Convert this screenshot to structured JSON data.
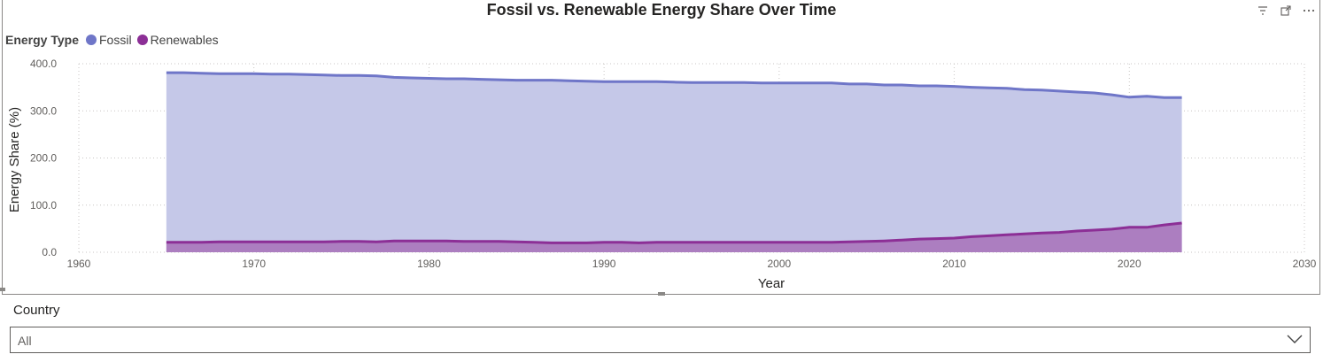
{
  "header": {
    "title": "Fossil vs. Renewable Energy Share Over Time",
    "icons": [
      "filter-icon",
      "focus-mode-icon",
      "more-options-icon"
    ]
  },
  "legend": {
    "title": "Energy Type",
    "items": [
      {
        "label": "Fossil",
        "color": "#6f76c8"
      },
      {
        "label": "Renewables",
        "color": "#8c2f96"
      }
    ]
  },
  "chart_data": {
    "type": "area",
    "xlabel": "Year",
    "ylabel": "Energy Share (%)",
    "xlim": [
      1960,
      2030
    ],
    "ylim": [
      0,
      400
    ],
    "x_ticks": [
      "1960",
      "1970",
      "1980",
      "1990",
      "2000",
      "2010",
      "2020",
      "2030"
    ],
    "y_ticks": [
      "0.0",
      "100.0",
      "200.0",
      "300.0",
      "400.0"
    ],
    "grid": true,
    "legend_position": "top-left",
    "x": [
      1965,
      1966,
      1967,
      1968,
      1969,
      1970,
      1971,
      1972,
      1973,
      1974,
      1975,
      1976,
      1977,
      1978,
      1979,
      1980,
      1981,
      1982,
      1983,
      1984,
      1985,
      1986,
      1987,
      1988,
      1989,
      1990,
      1991,
      1992,
      1993,
      1994,
      1995,
      1996,
      1997,
      1998,
      1999,
      2000,
      2001,
      2002,
      2003,
      2004,
      2005,
      2006,
      2007,
      2008,
      2009,
      2010,
      2011,
      2012,
      2013,
      2014,
      2015,
      2016,
      2017,
      2018,
      2019,
      2020,
      2021,
      2022,
      2023
    ],
    "series": [
      {
        "name": "Fossil",
        "color": "#6f76c8",
        "fill": "#c5c8e8",
        "values": [
          381,
          381,
          380,
          379,
          379,
          379,
          378,
          378,
          377,
          376,
          375,
          375,
          374,
          371,
          370,
          369,
          368,
          368,
          367,
          366,
          365,
          365,
          365,
          364,
          363,
          362,
          362,
          362,
          362,
          361,
          360,
          360,
          360,
          360,
          359,
          359,
          359,
          359,
          359,
          357,
          357,
          355,
          355,
          353,
          353,
          352,
          350,
          349,
          348,
          345,
          344,
          342,
          340,
          338,
          334,
          329,
          331,
          328,
          328
        ]
      },
      {
        "name": "Renewables",
        "color": "#8c2f96",
        "fill": "#ac7ec0",
        "values": [
          21,
          21,
          21,
          22,
          22,
          22,
          22,
          22,
          22,
          22,
          23,
          23,
          22,
          24,
          24,
          24,
          24,
          23,
          23,
          23,
          22,
          21,
          20,
          20,
          20,
          21,
          21,
          20,
          21,
          21,
          21,
          21,
          21,
          21,
          21,
          21,
          21,
          21,
          21,
          22,
          23,
          24,
          26,
          28,
          29,
          30,
          33,
          35,
          37,
          39,
          41,
          42,
          45,
          47,
          49,
          53,
          53,
          58,
          62
        ]
      }
    ]
  },
  "slicer": {
    "label": "Country",
    "value": "All"
  }
}
